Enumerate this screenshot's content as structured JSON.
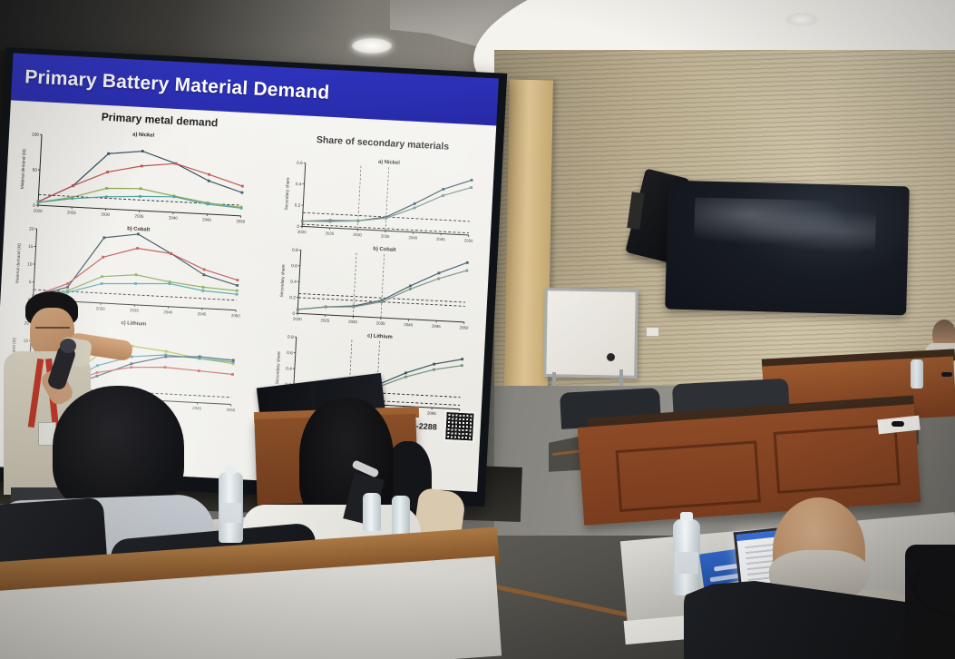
{
  "slide": {
    "title": "Primary Battery Material Demand",
    "left_heading": "Primary metal demand",
    "right_heading": "Share of secondary materials",
    "citation": "2.8: 2275-2288"
  },
  "colors": {
    "header_blue": "#2a2db5",
    "slide_bg": "#f4f3ef",
    "series_navy": "#33505f",
    "series_red": "#c0504d",
    "series_olive": "#89a54e",
    "series_teal": "#4aa3a2",
    "series_yellowgreen": "#a8b838",
    "series_slate": "#6c8b7a",
    "wood_desk": "#8a4a26",
    "wall": "#c9bda2",
    "carpet": "#7e7d78"
  },
  "chart_data": [
    {
      "id": "primary-nickel",
      "type": "line",
      "title": "a) Nickel",
      "ylabel": "Material demand (kt)",
      "ylim": [
        0,
        100
      ],
      "yticks": [
        0,
        50,
        100
      ],
      "x": [
        2020,
        2025,
        2030,
        2035,
        2040,
        2045,
        2050
      ],
      "series": [
        {
          "name": "navy-line",
          "color": "#33505f",
          "values": [
            5,
            30,
            78,
            84,
            69,
            47,
            33
          ]
        },
        {
          "name": "red-line",
          "color": "#c0504d",
          "values": [
            5,
            30,
            52,
            63,
            69,
            56,
            42
          ]
        },
        {
          "name": "olive-line",
          "color": "#89a54e",
          "values": [
            4,
            14,
            29,
            31,
            23,
            16,
            12
          ]
        },
        {
          "name": "teal-line",
          "color": "#4aa3a2",
          "values": [
            4,
            12,
            17,
            20,
            22,
            14,
            11
          ]
        }
      ],
      "hlines": [
        15
      ],
      "vlines": []
    },
    {
      "id": "primary-cobalt",
      "type": "line",
      "title": "b) Cobalt",
      "ylabel": "Material demand (kt)",
      "ylim": [
        0,
        20
      ],
      "yticks": [
        0,
        5,
        10,
        15,
        20
      ],
      "x": [
        2020,
        2025,
        2030,
        2035,
        2040,
        2045,
        2050
      ],
      "series": [
        {
          "name": "navy-line",
          "color": "#33505f",
          "values": [
            1,
            4,
            18.5,
            20,
            15,
            9.5,
            7
          ]
        },
        {
          "name": "red-line",
          "color": "#c0504d",
          "values": [
            1,
            5,
            13,
            16,
            15,
            11,
            8.5
          ]
        },
        {
          "name": "olive-line",
          "color": "#89a54e",
          "values": [
            0.8,
            3,
            7.5,
            8.5,
            7,
            6,
            5.5
          ]
        },
        {
          "name": "teal-line",
          "color": "#4aa3a2",
          "values": [
            0.8,
            2.5,
            5.5,
            6,
            6.5,
            5,
            4.5
          ]
        }
      ],
      "hlines": [
        2.8
      ],
      "vlines": []
    },
    {
      "id": "primary-lithium",
      "type": "line",
      "title": "c) Lithium",
      "ylabel": "Material demand (kt)",
      "ylim": [
        0,
        20
      ],
      "yticks": [
        0,
        5,
        10,
        15,
        20
      ],
      "x": [
        2020,
        2025,
        2030,
        2035,
        2040,
        2045,
        2050
      ],
      "series": [
        {
          "name": "yellowgreen-line",
          "color": "#a8b838",
          "values": [
            1,
            4,
            12,
            15,
            14,
            12.5,
            11.5
          ]
        },
        {
          "name": "teal-line",
          "color": "#3f8fa0",
          "values": [
            0.8,
            3,
            9,
            12,
            13,
            12.5,
            12
          ]
        },
        {
          "name": "navy-line",
          "color": "#33505f",
          "values": [
            0.8,
            2,
            6,
            10,
            12.5,
            13,
            12.5
          ]
        },
        {
          "name": "red-line",
          "color": "#c0504d",
          "values": [
            0.8,
            3,
            7,
            9,
            9.5,
            9,
            8.5
          ]
        }
      ],
      "hlines": [
        2
      ],
      "vlines": []
    },
    {
      "id": "share-nickel",
      "type": "line",
      "title": "a) Nickel",
      "ylabel": "Secondary share",
      "ylim": [
        0,
        0.6
      ],
      "yticks": [
        0,
        0.2,
        0.4,
        0.6
      ],
      "x": [
        2020,
        2025,
        2030,
        2035,
        2040,
        2045,
        2050
      ],
      "series": [
        {
          "name": "navy-line",
          "color": "#33505f",
          "values": [
            0.05,
            0.07,
            0.08,
            0.13,
            0.27,
            0.42,
            0.52
          ]
        },
        {
          "name": "slate-line",
          "color": "#6c8b7a",
          "values": [
            0.05,
            0.06,
            0.08,
            0.12,
            0.23,
            0.36,
            0.45
          ]
        }
      ],
      "hlines": [
        0.13,
        0.02
      ],
      "vlines": [
        2030,
        2035
      ]
    },
    {
      "id": "share-cobalt",
      "type": "line",
      "title": "b) Cobalt",
      "ylabel": "Secondary share",
      "ylim": [
        0,
        0.8
      ],
      "yticks": [
        0,
        0.2,
        0.4,
        0.6,
        0.8
      ],
      "x": [
        2020,
        2025,
        2030,
        2035,
        2040,
        2045,
        2050
      ],
      "series": [
        {
          "name": "navy-line",
          "color": "#33505f",
          "values": [
            0.05,
            0.1,
            0.13,
            0.22,
            0.42,
            0.6,
            0.75
          ]
        },
        {
          "name": "slate-line",
          "color": "#6c8b7a",
          "values": [
            0.05,
            0.1,
            0.12,
            0.2,
            0.38,
            0.53,
            0.65
          ]
        }
      ],
      "hlines": [
        0.25,
        0.2
      ],
      "vlines": [
        2030,
        2035
      ]
    },
    {
      "id": "share-lithium",
      "type": "line",
      "title": "c) Lithium",
      "ylabel": "Secondary share",
      "ylim": [
        0,
        0.8
      ],
      "yticks": [
        0,
        0.2,
        0.4,
        0.6,
        0.8
      ],
      "x": [
        2020,
        2025,
        2030,
        2035,
        2040,
        2045,
        2050
      ],
      "series": [
        {
          "name": "navy-line",
          "color": "#33505f",
          "values": [
            0.02,
            0.03,
            0.08,
            0.25,
            0.42,
            0.55,
            0.63
          ]
        },
        {
          "name": "slate-line",
          "color": "#6c8b7a",
          "values": [
            0.02,
            0.03,
            0.07,
            0.22,
            0.37,
            0.48,
            0.55
          ]
        }
      ],
      "hlines": [
        0.15,
        0.05
      ],
      "vlines": [
        2030,
        2035
      ]
    }
  ]
}
